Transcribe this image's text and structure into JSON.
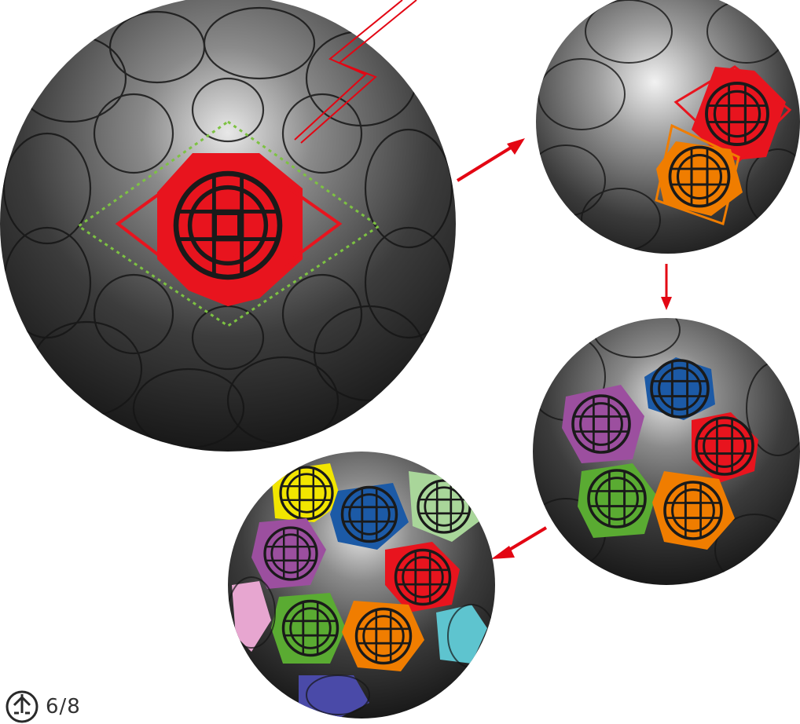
{
  "page": {
    "number": "6/8"
  },
  "icons": {
    "logo": "brand-symbol-icon",
    "arrow": "arrow-icon"
  },
  "colors": {
    "sphere_dark": "#1e1e1e",
    "sphere_light": "#d9d9d9",
    "highlight_red": "#e8141e",
    "guide_green": "#7dc242",
    "arrow_red": "#e30613",
    "orange": "#f07d00",
    "blue": "#1c5aa6",
    "purple": "#9c4f9f",
    "green": "#5aab32",
    "yellow": "#f2e500",
    "pale_green": "#a9d69a",
    "pink": "#e7a6d0",
    "cyan": "#5ec4cf",
    "indigo": "#4a4aa8"
  },
  "steps": [
    {
      "id": "step-1",
      "colored_faces": [
        "highlight_red"
      ]
    },
    {
      "id": "step-2",
      "colored_faces": [
        "highlight_red",
        "orange"
      ]
    },
    {
      "id": "step-3",
      "colored_faces": [
        "blue",
        "purple",
        "highlight_red",
        "green",
        "orange"
      ]
    },
    {
      "id": "step-4",
      "colored_faces": [
        "yellow",
        "blue",
        "pale_green",
        "purple",
        "highlight_red",
        "pink",
        "green",
        "orange",
        "cyan",
        "indigo"
      ]
    }
  ]
}
